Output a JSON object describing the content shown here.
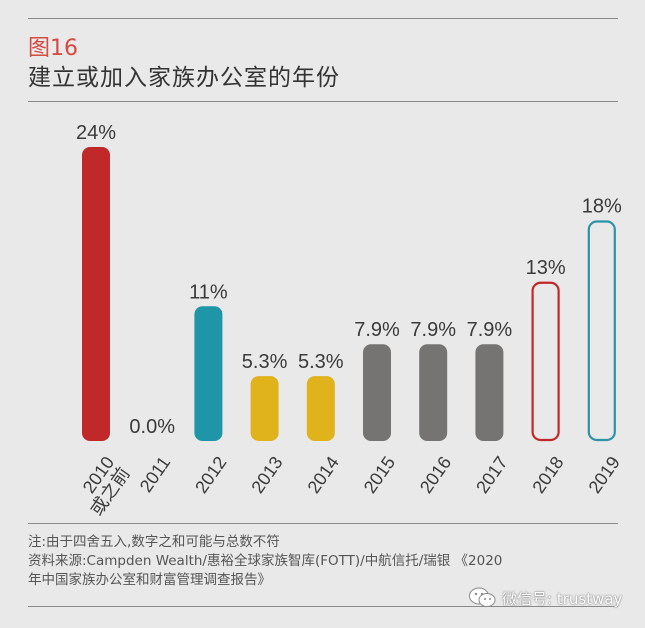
{
  "figure": {
    "label": "图16",
    "title": "建立或加入家族办公室的年份"
  },
  "chart_data": {
    "type": "bar",
    "categories": [
      "2010或之前",
      "2011",
      "2012",
      "2013",
      "2014",
      "2015",
      "2016",
      "2017",
      "2018",
      "2019"
    ],
    "category_lines": [
      [
        "2010",
        "或之前"
      ],
      [
        "2011"
      ],
      [
        "2012"
      ],
      [
        "2013"
      ],
      [
        "2014"
      ],
      [
        "2015"
      ],
      [
        "2016"
      ],
      [
        "2017"
      ],
      [
        "2018"
      ],
      [
        "2019"
      ]
    ],
    "values": [
      24,
      0.0,
      11,
      5.3,
      5.3,
      7.9,
      7.9,
      7.9,
      13,
      18
    ],
    "value_labels": [
      "24%",
      "0.0%",
      "11%",
      "5.3%",
      "5.3%",
      "7.9%",
      "7.9%",
      "7.9%",
      "13%",
      "18%"
    ],
    "bar_colors": [
      "#c0282a",
      "#c0282a",
      "#1f96a8",
      "#e0b21c",
      "#e0b21c",
      "#767473",
      "#767473",
      "#767473",
      "#c0282a",
      "#2e92a8"
    ],
    "bar_fill": [
      "solid",
      "solid",
      "solid",
      "solid",
      "solid",
      "solid",
      "solid",
      "solid",
      "outline",
      "outline"
    ],
    "ylim": [
      0,
      24
    ],
    "title": "建立或加入家族办公室的年份",
    "xlabel": "",
    "ylabel": "",
    "grid": false
  },
  "notes": {
    "note": "注:由于四舍五入,数字之和可能与总数不符",
    "source_line1": "资料来源:Campden Wealth/惠裕全球家族智库(FOTT)/中航信托/瑞银 《2020",
    "source_line2": "年中国家族办公室和财富管理调查报告》"
  },
  "watermark": {
    "text": "微信号: trustway",
    "icon": "wechat-icon"
  }
}
